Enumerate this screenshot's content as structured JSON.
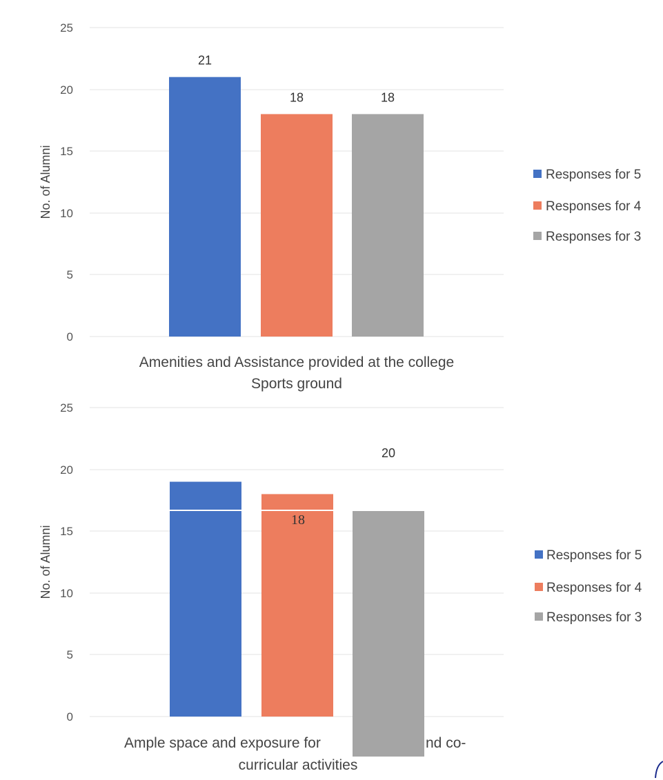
{
  "chart_data": [
    {
      "type": "bar",
      "categories": [
        "Amenities and Assistance provided at the college Sports ground"
      ],
      "category_lines": [
        "Amenities and Assistance provided at the college",
        "Sports ground"
      ],
      "series": [
        {
          "name": "Responses for 5",
          "values": [
            21
          ],
          "color": "#4472C4",
          "label": "21"
        },
        {
          "name": "Responses for 4",
          "values": [
            18
          ],
          "color": "#ED7D5E",
          "label": "18"
        },
        {
          "name": "Responses for 3",
          "values": [
            18
          ],
          "color": "#A5A5A5",
          "label": "18"
        }
      ],
      "ylabel": "No. of Alumni",
      "ylim": [
        0,
        25
      ],
      "yticks": [
        "0",
        "5",
        "10",
        "15",
        "20",
        "25"
      ],
      "grid": true,
      "legend": "right"
    },
    {
      "type": "bar",
      "categories": [
        "Ample space and exposure for sports and co-curricular activities"
      ],
      "category_lines": [
        "Ample space and exposure for",
        "nd co-",
        "curricular activities"
      ],
      "series": [
        {
          "name": "Responses for 5",
          "values": [
            19
          ],
          "color": "#4472C4",
          "label": ""
        },
        {
          "name": "Responses for 4",
          "values": [
            18
          ],
          "color": "#ED7D5E",
          "label": "18"
        },
        {
          "name": "Responses for 3",
          "values": [
            20
          ],
          "color": "#A5A5A5",
          "label": "20"
        }
      ],
      "ylabel": "No. of Alumni",
      "ylim": [
        0,
        25
      ],
      "yticks": [
        "0",
        "5",
        "10",
        "15",
        "20",
        "25"
      ],
      "grid": true,
      "legend": "right"
    }
  ]
}
